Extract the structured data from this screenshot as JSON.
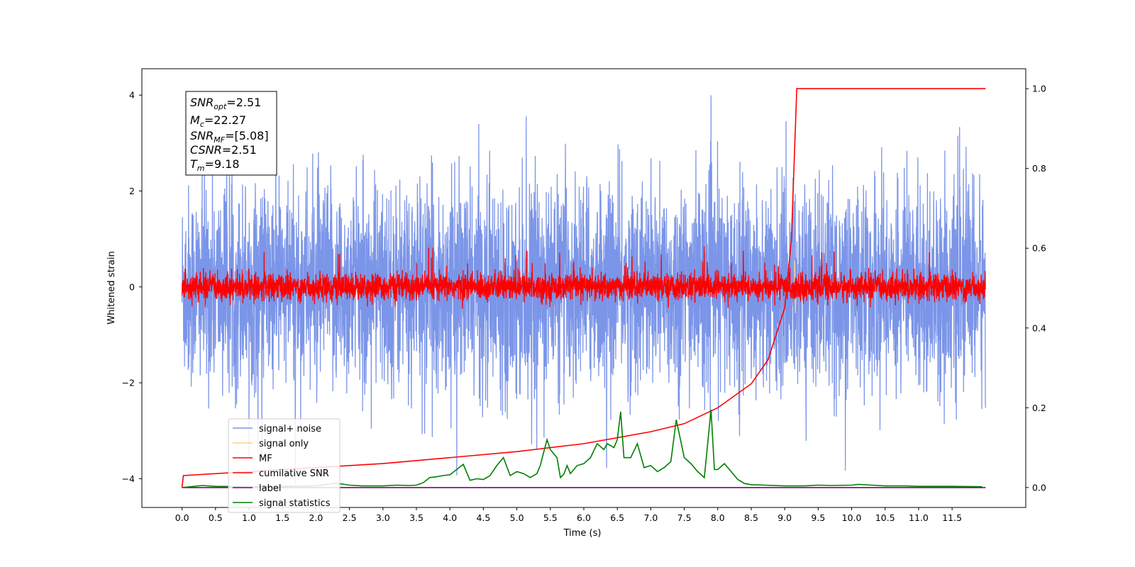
{
  "chart_data": {
    "type": "line",
    "xlabel": "Time (s)",
    "ylabel": "Whitened strain",
    "xlim": [
      -0.6,
      12.6
    ],
    "ylim_left": [
      -4.6,
      4.55
    ],
    "ylim_right": [
      -0.05,
      1.05
    ],
    "x_ticks": [
      "0.0",
      "0.5",
      "1.0",
      "1.5",
      "2.0",
      "2.5",
      "3.0",
      "3.5",
      "4.0",
      "4.5",
      "5.0",
      "5.5",
      "6.0",
      "6.5",
      "7.0",
      "7.5",
      "8.0",
      "8.5",
      "9.0",
      "9.5",
      "10.0",
      "10.5",
      "11.0",
      "11.5"
    ],
    "y_ticks_left": [
      "4",
      "2",
      "0",
      "−2",
      "−4"
    ],
    "y_ticks_right": [
      "1.0",
      "0.8",
      "0.6",
      "0.4",
      "0.2",
      "0.0"
    ],
    "info_box": {
      "snr_opt": {
        "symbol": "SNR",
        "sub": "opt",
        "value": "=2.51"
      },
      "mc": {
        "symbol": "M",
        "sub": "c",
        "value": "=22.27"
      },
      "snr_mf": {
        "symbol": "SNR",
        "sub": "MF",
        "value": "=[5.08]"
      },
      "csnr": {
        "symbol": "CSNR",
        "value": "=2.51"
      },
      "tm": {
        "symbol": "T",
        "sub": "m",
        "value": "=9.18"
      }
    },
    "legend_position": "lower-left",
    "legend": [
      "signal+ noise",
      "signal only",
      "MF",
      "cumilative SNR",
      "label",
      "signal statistics"
    ],
    "colors": {
      "signal_noise": "#7b95e8",
      "signal_only": "#ffd27a",
      "mf": "#ff0000",
      "cumulative_snr": "#ff0000",
      "label": "#800080",
      "signal_statistics": "#008000"
    },
    "series": [
      {
        "name": "signal+ noise",
        "axis": "left",
        "x_range": [
          0,
          12
        ],
        "mean": 0,
        "amplitude_range": [
          -4.1,
          4.1
        ],
        "typical_spread": 1.9
      },
      {
        "name": "signal only",
        "axis": "left",
        "x_range": [
          9.1,
          9.2
        ],
        "peak": 0.55,
        "trough": -0.55
      },
      {
        "name": "MF",
        "axis": "left",
        "x_range": [
          0,
          12
        ],
        "mean": 0,
        "amplitude_range": [
          -0.45,
          0.85
        ]
      },
      {
        "name": "cumilative SNR",
        "axis": "right",
        "x": [
          0.0,
          0.02,
          1.0,
          2.0,
          3.0,
          4.0,
          5.0,
          6.0,
          7.0,
          7.5,
          8.0,
          8.5,
          8.75,
          9.0,
          9.1,
          9.18,
          12.0
        ],
        "y": [
          0.0,
          0.03,
          0.04,
          0.05,
          0.06,
          0.075,
          0.09,
          0.11,
          0.14,
          0.16,
          0.2,
          0.26,
          0.32,
          0.45,
          0.62,
          1.0,
          1.0
        ]
      },
      {
        "name": "label",
        "axis": "right",
        "x": [
          0,
          12
        ],
        "y": [
          0,
          0
        ]
      },
      {
        "name": "signal statistics",
        "axis": "right",
        "x": [
          0.0,
          0.3,
          0.5,
          1.0,
          1.5,
          2.0,
          2.3,
          2.5,
          2.7,
          3.0,
          3.2,
          3.4,
          3.5,
          3.6,
          3.7,
          3.8,
          3.9,
          4.0,
          4.1,
          4.2,
          4.3,
          4.4,
          4.5,
          4.6,
          4.7,
          4.8,
          4.9,
          5.0,
          5.1,
          5.2,
          5.3,
          5.35,
          5.45,
          5.5,
          5.6,
          5.65,
          5.7,
          5.75,
          5.8,
          5.9,
          6.0,
          6.1,
          6.2,
          6.3,
          6.35,
          6.45,
          6.5,
          6.55,
          6.6,
          6.7,
          6.8,
          6.9,
          7.0,
          7.1,
          7.2,
          7.3,
          7.38,
          7.5,
          7.6,
          7.7,
          7.8,
          7.9,
          7.95,
          8.0,
          8.1,
          8.2,
          8.3,
          8.4,
          8.5,
          8.7,
          9.0,
          9.3,
          9.5,
          9.7,
          10.0,
          10.1,
          10.3,
          10.5,
          10.8,
          11.0,
          11.5,
          11.95
        ],
        "y": [
          0.0,
          0.005,
          0.003,
          0.002,
          0.003,
          0.004,
          0.011,
          0.006,
          0.004,
          0.004,
          0.006,
          0.005,
          0.006,
          0.012,
          0.025,
          0.027,
          0.03,
          0.032,
          0.045,
          0.058,
          0.018,
          0.022,
          0.02,
          0.03,
          0.055,
          0.075,
          0.03,
          0.04,
          0.035,
          0.025,
          0.035,
          0.055,
          0.12,
          0.095,
          0.075,
          0.025,
          0.033,
          0.055,
          0.035,
          0.055,
          0.06,
          0.075,
          0.11,
          0.095,
          0.11,
          0.1,
          0.12,
          0.19,
          0.075,
          0.075,
          0.11,
          0.05,
          0.055,
          0.04,
          0.05,
          0.065,
          0.17,
          0.075,
          0.06,
          0.04,
          0.025,
          0.195,
          0.045,
          0.045,
          0.06,
          0.04,
          0.02,
          0.01,
          0.007,
          0.006,
          0.004,
          0.004,
          0.006,
          0.005,
          0.006,
          0.008,
          0.006,
          0.004,
          0.004,
          0.003,
          0.003,
          0.002
        ]
      }
    ]
  }
}
